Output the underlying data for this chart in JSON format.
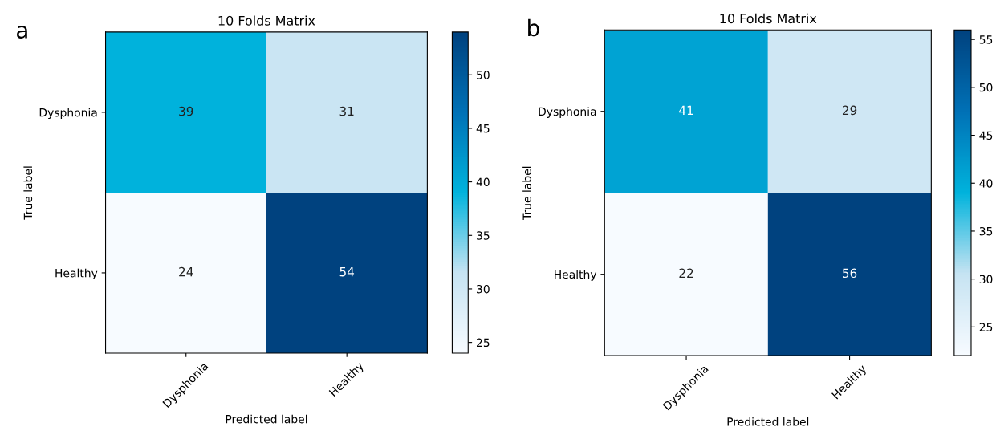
{
  "chart_data": [
    {
      "type": "heatmap",
      "title": "10 Folds Matrix",
      "xlabel": "Predicted label",
      "ylabel": "True label",
      "annotations": [
        "a"
      ],
      "categories": [
        "Dysphonia",
        "Healthy"
      ],
      "y_categories": [
        "Dysphonia",
        "Healthy"
      ],
      "cells": [
        [
          39,
          31
        ],
        [
          24,
          54
        ]
      ],
      "clim": [
        24,
        54
      ],
      "cticks": [
        25,
        30,
        35,
        40,
        45,
        50
      ],
      "data_labels": true
    },
    {
      "type": "heatmap",
      "title": "10 Folds Matrix",
      "xlabel": "Predicted label",
      "ylabel": "True label",
      "annotations": [
        "b"
      ],
      "categories": [
        "Dysphonia",
        "Healthy"
      ],
      "y_categories": [
        "Dysphonia",
        "Healthy"
      ],
      "cells": [
        [
          41,
          29
        ],
        [
          22,
          56
        ]
      ],
      "clim": [
        22,
        56
      ],
      "cticks": [
        25,
        30,
        35,
        40,
        45,
        50,
        55
      ],
      "data_labels": true
    }
  ]
}
